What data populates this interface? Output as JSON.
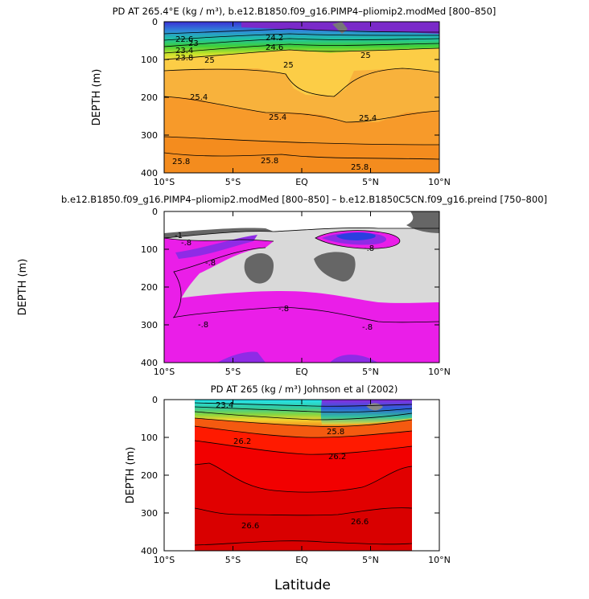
{
  "figure": {
    "xlabel": "Latitude"
  },
  "chart_data": [
    {
      "type": "contour",
      "title": "PD AT 265.4°E (kg / m³), b.e12.B1850.f09_g16.PIMP4–pliomip2.modMed [800–850]",
      "ylabel": "DEPTH (m)",
      "x_ticks": [
        "10°S",
        "5°S",
        "EQ",
        "5°N",
        "10°N"
      ],
      "x_values": [
        -10,
        -5,
        0,
        5,
        10
      ],
      "y_ticks": [
        "0",
        "100",
        "200",
        "300",
        "400"
      ],
      "y_values": [
        0,
        100,
        200,
        300,
        400
      ],
      "ylim": [
        400,
        0
      ],
      "xlim": [
        -10,
        10
      ],
      "levels": [
        {
          "value": 25.4,
          "label": "25.4",
          "color": "#f7a73a"
        },
        {
          "value": 25.8,
          "label": "25.8",
          "color": "#f39020"
        }
      ],
      "contour_labels": [
        "22.6",
        "23",
        "23.4",
        "23.8",
        "24.2",
        "24.6",
        "25",
        "25.4",
        "25.8"
      ]
    },
    {
      "type": "contour",
      "title": "b.e12.B1850.f09_g16.PIMP4–pliomip2.modMed [800–850] – b.e12.B1850C5CN.f09_g16.preind [750–800]",
      "ylabel": "DEPTH (m)",
      "x_ticks": [
        "10°S",
        "5°S",
        "EQ",
        "5°N",
        "10°N"
      ],
      "x_values": [
        -10,
        -5,
        0,
        5,
        10
      ],
      "y_ticks": [
        "0",
        "100",
        "200",
        "300",
        "400"
      ],
      "y_values": [
        0,
        100,
        200,
        300,
        400
      ],
      "ylim": [
        400,
        0
      ],
      "xlim": [
        -10,
        10
      ],
      "contour_labels": [
        "-1",
        "-.8",
        "-.8",
        "-.8",
        "-.8",
        "-.8"
      ]
    },
    {
      "type": "contour",
      "title": "PD AT 265 (kg / m³) Johnson et al (2002)",
      "ylabel": "DEPTH (m)",
      "x_ticks": [
        "10°S",
        "5°S",
        "EQ",
        "5°N",
        "10°N"
      ],
      "x_values": [
        -10,
        -5,
        0,
        5,
        10
      ],
      "y_ticks": [
        "0",
        "100",
        "200",
        "300",
        "400"
      ],
      "y_values": [
        0,
        100,
        200,
        300,
        400
      ],
      "ylim": [
        400,
        0
      ],
      "xlim": [
        -10,
        10
      ],
      "contour_labels": [
        "23.4",
        "25.8",
        "26.2",
        "26.2",
        "26.6",
        "26.6"
      ]
    }
  ]
}
